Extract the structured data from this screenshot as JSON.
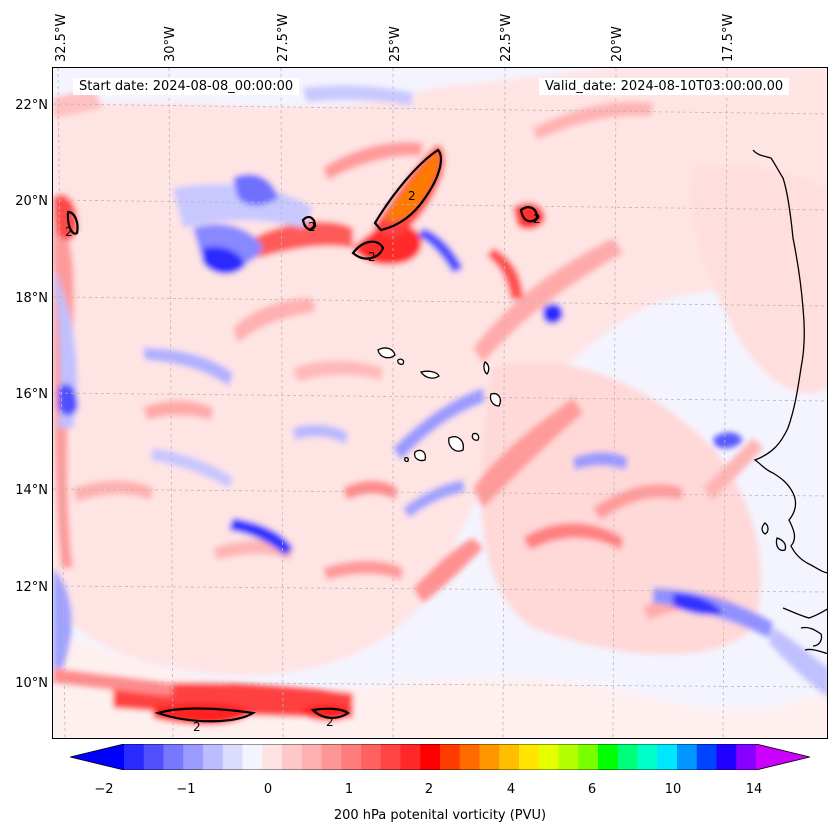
{
  "header": {
    "start_label": "Start date: 2024-08-08_00:00:00",
    "valid_label": "Valid_date: 2024-08-10T03:00:00.00"
  },
  "axes": {
    "longitude_labels": [
      "32.5°W",
      "30°W",
      "27.5°W",
      "25°W",
      "22.5°W",
      "20°W",
      "17.5°W"
    ],
    "latitude_labels": [
      "22°N",
      "20°N",
      "18°N",
      "16°N",
      "14°N",
      "12°N",
      "10°N"
    ]
  },
  "colorbar": {
    "title": "200 hPa potenital vorticity (PVU)",
    "tick_labels": [
      "−2",
      "−1",
      "0",
      "1",
      "2",
      "4",
      "6",
      "10",
      "14"
    ],
    "colors": [
      "#0000ff",
      "#2a2aff",
      "#5050ff",
      "#7878ff",
      "#9a9aff",
      "#bcbcff",
      "#dcdcff",
      "#f4f4ff",
      "#ffe2e2",
      "#ffc8c8",
      "#ffb0b0",
      "#ff9696",
      "#ff7c7c",
      "#ff6060",
      "#ff4444",
      "#ff2828",
      "#ff0000",
      "#ff3c00",
      "#ff6a00",
      "#ff9600",
      "#ffbe00",
      "#ffe600",
      "#e6ff00",
      "#b4ff00",
      "#78ff00",
      "#00ff00",
      "#00ff78",
      "#00ffc8",
      "#00e6ff",
      "#0096ff",
      "#0044ff",
      "#2200ff",
      "#8800ff",
      "#cc00ff"
    ]
  },
  "map": {
    "contour_label": "2",
    "background_color": "#f4f4ff",
    "field_colors": {
      "weak_positive": "#ffdede",
      "moderate_positive": "#ff9a9a",
      "strong_positive": "#ff2a2a",
      "very_strong": "#ff7a00",
      "weak_negative": "#d8d8ff",
      "moderate_negative": "#8c8cff",
      "strong_negative": "#2222ff"
    }
  }
}
